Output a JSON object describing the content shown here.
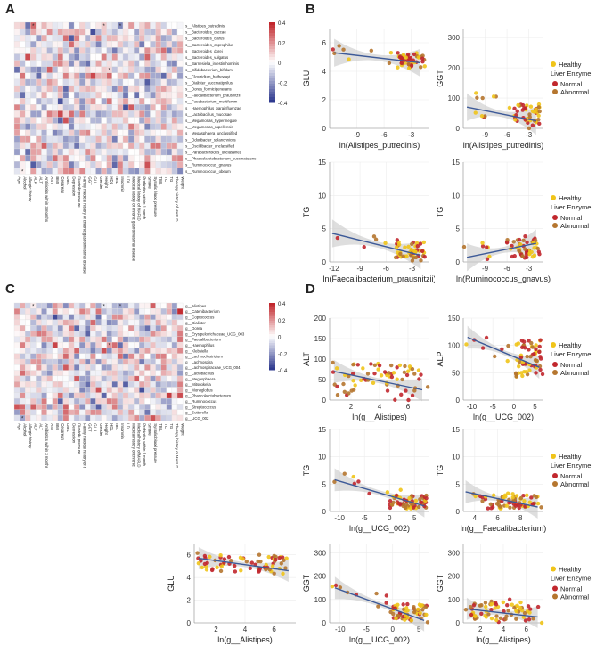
{
  "panel_labels": {
    "a": "A",
    "b": "B",
    "c": "C",
    "d": "D"
  },
  "colors": {
    "heat_low": "#2f3a8f",
    "heat_mid": "#ffffff",
    "heat_high": "#c1272d",
    "healthy": "#f0c419",
    "normal": "#c1272d",
    "abnormal": "#b5762f",
    "fit": "#3d5a98",
    "band": "#c8c8c8"
  },
  "legend_text": {
    "healthy": "Healthy",
    "group_title": "Liver Enzyme",
    "normal": "Normal",
    "abnormal": "Abnormal"
  },
  "chart_data": [
    {
      "panel": "A",
      "type": "heatmap",
      "row_labels": [
        "s__Alistipes_putredinis",
        "s__Bacteroides_caccae",
        "s__Bacteroides_clarus",
        "s__Bacteroides_coprophilus",
        "s__Bacteroides_dorei",
        "s__Bacteroides_vulgatus",
        "s__Barnesiella_intestinihominis",
        "s__Bifidobacterium_bifidum",
        "s__Clostridium_hathewayi",
        "s__Dialister_succinatiphilus",
        "s__Dorea_formicigenerans",
        "s__Faecalibacterium_prausnitzii",
        "s__Fusobacterium_mortiferum",
        "s__Haemophilus_parainfluenzae",
        "s__Lactobacillus_mucosae",
        "s__Megamonas_hypermegale",
        "s__Megamonas_rupellensis",
        "s__Megasphaera_unclassified",
        "s__Odoribacter_splanchnicus",
        "s__Oscillibacter_unclassified",
        "s__Parabacteroides_unclassified",
        "s__Phascolarctobacterium_succinatutens",
        "s__Ruminococcus_gnavus",
        "s__Ruminococcus_obeum"
      ],
      "col_labels": [
        "Age",
        "Alcohol",
        "Allergic history",
        "ALP",
        "ALT",
        "Antibiotics within 3 months",
        "AST",
        "BMI",
        "Cesarean",
        "DBIL",
        "Depression",
        "Diastolic pressure",
        "Family medical history of chronic gastrointestinal disease",
        "GGT",
        "GLU",
        "Gender",
        "Height",
        "HDL",
        "IBIL",
        "Insomnia",
        "LDL",
        "Medical history of chronic gastrointestinal disease",
        "Medical history of MAFLD",
        "Probiotics within 1 month",
        "Smoke",
        "Systolic blood pressure",
        "TBIL",
        "TC",
        "TG",
        "Therapy history of MAFLD",
        "Weight"
      ],
      "colorbar_ticks": [
        "0.4",
        "0.2",
        "0",
        "-0.2",
        "-0.4"
      ],
      "seed": 7
    },
    {
      "panel": "C",
      "type": "heatmap",
      "row_labels": [
        "g__Alistipes",
        "g__Catenibacterium",
        "g__Coprococcus",
        "g__Dialister",
        "g__Dorea",
        "g__Erysipelotrichaceae_UCG_003",
        "g__Faecalibacterium",
        "g__Haemophilus",
        "g__Klebsiella",
        "g__Lachnoclostridium",
        "g__Lachnospira",
        "g__Lachnospiraceae_UCG_004",
        "g__Lactobacillus",
        "g__Megasphaera",
        "g__Mitsuokella",
        "g__Monoglobus",
        "g__Phascolarctobacterium",
        "g__Ruminococcus",
        "g__Streptococcus",
        "g__Sutterella",
        "g__UCG_002"
      ],
      "col_labels": [
        "Age",
        "Alcohol",
        "Allergic history",
        "ALP",
        "ALT",
        "Antibiotics within 3 months",
        "AST",
        "BMI",
        "Cesarean",
        "DBIL",
        "Depression",
        "Diastolic pressure",
        "Family medical history of chronic gastrointestinal disease",
        "GGT",
        "GLU",
        "Gender",
        "Height",
        "HDL",
        "IBIL",
        "Insomnia",
        "LDL",
        "Medical history of chronic gastrointestinal disease",
        "Medical history of MAFLD",
        "Probiotics within 1 month",
        "Smoke",
        "Systolic blood pressure",
        "TBIL",
        "TC",
        "TG",
        "Therapy history of MAFLD",
        "Weight"
      ],
      "colorbar_ticks": [
        "0.4",
        "0.2",
        "0",
        "-0.2",
        "-0.4"
      ],
      "seed": 23
    },
    {
      "panel": "B",
      "type": "scatter",
      "xlabel": "ln(Alistipes_putredinis)",
      "ylabel": "GLU",
      "xlim": [
        -12,
        -1
      ],
      "ylim": [
        0,
        7
      ],
      "xticks": [
        "-9",
        "-6",
        "-3"
      ],
      "yticks": [
        "0",
        "2",
        "4",
        "6"
      ],
      "fit": [
        [
          -11.5,
          5.3
        ],
        [
          -2,
          4.6
        ]
      ],
      "cluster": {
        "x": [
          -4.5,
          -1.5
        ],
        "y": [
          4.2,
          5.3
        ]
      },
      "spread": 0.3,
      "seed": 11,
      "n": 55,
      "legend": false
    },
    {
      "panel": "B",
      "type": "scatter",
      "xlabel": "ln(Alistipes_putredinis)",
      "ylabel": "GGT",
      "xlim": [
        -12,
        -1
      ],
      "ylim": [
        0,
        330
      ],
      "xticks": [
        "-9",
        "-6",
        "-3"
      ],
      "yticks": [
        "0",
        "100",
        "200",
        "300"
      ],
      "fit": [
        [
          -11.5,
          70
        ],
        [
          -2,
          25
        ]
      ],
      "cluster": {
        "x": [
          -5,
          -1.5
        ],
        "y": [
          15,
          80
        ]
      },
      "spread": 30,
      "seed": 13,
      "n": 55,
      "legend": true
    },
    {
      "panel": "B",
      "type": "scatter",
      "xlabel": "ln(Faecalibacterium_prausnitzii)",
      "ylabel": "TG",
      "xlim": [
        -12.5,
        -1
      ],
      "ylim": [
        0,
        15
      ],
      "xticks": [
        "-12",
        "-9",
        "-6",
        "-3"
      ],
      "yticks": [
        "0",
        "5",
        "10",
        "15"
      ],
      "fit": [
        [
          -12.2,
          4.3
        ],
        [
          -2,
          1.0
        ]
      ],
      "cluster": {
        "x": [
          -5,
          -1.5
        ],
        "y": [
          0.5,
          3
        ]
      },
      "spread": 1,
      "seed": 17,
      "n": 55,
      "legend": false
    },
    {
      "panel": "B",
      "type": "scatter",
      "xlabel": "ln(Ruminococcus_gnavus)",
      "ylabel": "TG",
      "xlim": [
        -12,
        -1
      ],
      "ylim": [
        0,
        15
      ],
      "xticks": [
        "-9",
        "-6",
        "-3"
      ],
      "yticks": [
        "0",
        "5",
        "10",
        "15"
      ],
      "fit": [
        [
          -11.5,
          0.7
        ],
        [
          -2,
          2.8
        ]
      ],
      "cluster": {
        "x": [
          -6,
          -1.5
        ],
        "y": [
          0.5,
          3.5
        ]
      },
      "spread": 1,
      "seed": 19,
      "n": 55,
      "legend": true
    },
    {
      "panel": "D",
      "type": "scatter",
      "xlabel": "ln(g__Alistipes)",
      "ylabel": "ALT",
      "xlim": [
        0.5,
        7.5
      ],
      "ylim": [
        0,
        200
      ],
      "xticks": [
        "2",
        "4",
        "6"
      ],
      "yticks": [
        "0",
        "50",
        "100",
        "150",
        "200"
      ],
      "fit": [
        [
          0.8,
          70
        ],
        [
          7,
          25
        ]
      ],
      "cluster": {
        "x": [
          1,
          7
        ],
        "y": [
          10,
          90
        ]
      },
      "spread": 40,
      "seed": 29,
      "n": 70,
      "legend": false
    },
    {
      "panel": "D",
      "type": "scatter",
      "xlabel": "ln(g__UCG_002)",
      "ylabel": "ALP",
      "xlim": [
        -12,
        7
      ],
      "ylim": [
        0,
        150
      ],
      "xticks": [
        "-10",
        "-5",
        "0",
        "5"
      ],
      "yticks": [
        "0",
        "50",
        "100",
        "150"
      ],
      "fit": [
        [
          -11,
          115
        ],
        [
          6,
          60
        ]
      ],
      "cluster": {
        "x": [
          0,
          6.5
        ],
        "y": [
          40,
          110
        ]
      },
      "spread": 15,
      "seed": 31,
      "n": 70,
      "legend": true
    },
    {
      "panel": "D",
      "type": "scatter",
      "xlabel": "ln(g__UCG_002)",
      "ylabel": "TG",
      "xlim": [
        -12,
        8
      ],
      "ylim": [
        0,
        15
      ],
      "xticks": [
        "-10",
        "-5",
        "0",
        "5"
      ],
      "yticks": [
        "0",
        "5",
        "10",
        "15"
      ],
      "fit": [
        [
          -11,
          5.8
        ],
        [
          7,
          1
        ]
      ],
      "cluster": {
        "x": [
          0,
          7.5
        ],
        "y": [
          0.5,
          3
        ]
      },
      "spread": 1,
      "seed": 37,
      "n": 70,
      "legend": false
    },
    {
      "panel": "D",
      "type": "scatter",
      "xlabel": "ln(g__Faecalibacterium)",
      "ylabel": "TG",
      "xlim": [
        3,
        10
      ],
      "ylim": [
        0,
        15
      ],
      "xticks": [
        "4",
        "6",
        "8"
      ],
      "yticks": [
        "0",
        "5",
        "10",
        "15"
      ],
      "fit": [
        [
          3.2,
          3.6
        ],
        [
          9.5,
          0.8
        ]
      ],
      "cluster": {
        "x": [
          5,
          9.5
        ],
        "y": [
          0.5,
          3
        ]
      },
      "spread": 1,
      "seed": 41,
      "n": 70,
      "legend": true
    },
    {
      "panel": "D",
      "type": "scatter",
      "xlabel": "ln(g__Alistipes)",
      "ylabel": "GLU",
      "xlim": [
        0.5,
        7.5
      ],
      "ylim": [
        0,
        7
      ],
      "xticks": [
        "2",
        "4",
        "6"
      ],
      "yticks": [
        "0",
        "2",
        "4",
        "6"
      ],
      "fit": [
        [
          0.8,
          5.7
        ],
        [
          7,
          4.6
        ]
      ],
      "cluster": {
        "x": [
          1,
          7
        ],
        "y": [
          4.5,
          6
        ]
      },
      "spread": 0.4,
      "seed": 43,
      "n": 70,
      "legend": false
    },
    {
      "panel": "D",
      "type": "scatter",
      "xlabel": "ln(g__UCG_002)",
      "ylabel": "GGT",
      "xlim": [
        -12,
        7
      ],
      "ylim": [
        0,
        340
      ],
      "xticks": [
        "-10",
        "-5",
        "0",
        "5"
      ],
      "yticks": [
        "0",
        "100",
        "200",
        "300"
      ],
      "fit": [
        [
          -11,
          150
        ],
        [
          6,
          10
        ]
      ],
      "cluster": {
        "x": [
          0,
          6.5
        ],
        "y": [
          10,
          80
        ]
      },
      "spread": 30,
      "seed": 47,
      "n": 70,
      "legend": false
    },
    {
      "panel": "D",
      "type": "scatter",
      "xlabel": "ln(g__Alistipes)",
      "ylabel": "GGT",
      "xlim": [
        0.5,
        7.5
      ],
      "ylim": [
        0,
        340
      ],
      "xticks": [
        "2",
        "4",
        "6"
      ],
      "yticks": [
        "0",
        "100",
        "200",
        "300"
      ],
      "fit": [
        [
          0.8,
          60
        ],
        [
          7,
          25
        ]
      ],
      "cluster": {
        "x": [
          1,
          7
        ],
        "y": [
          10,
          90
        ]
      },
      "spread": 35,
      "seed": 53,
      "n": 70,
      "legend": true
    }
  ]
}
